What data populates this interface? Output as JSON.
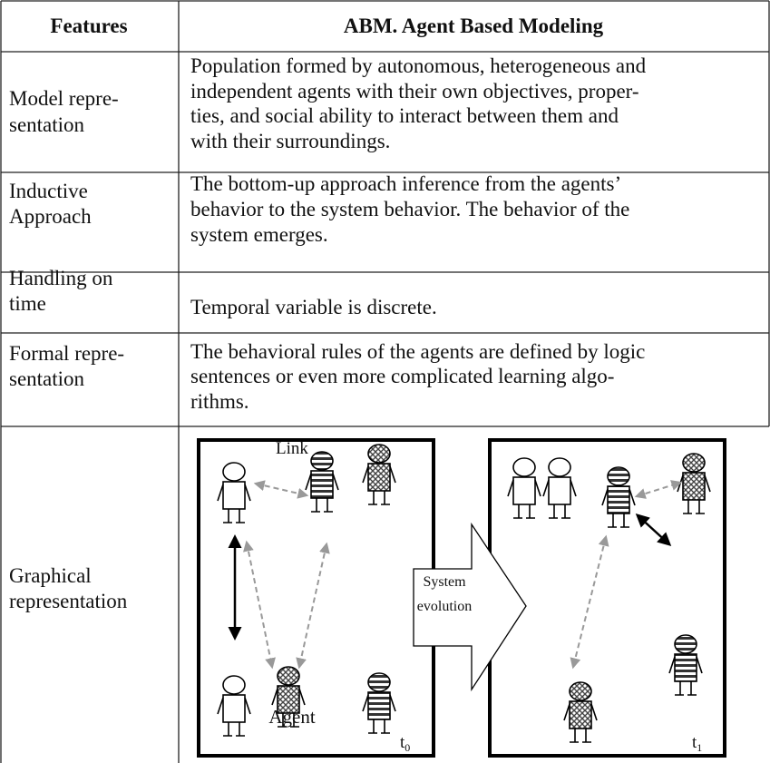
{
  "header": {
    "features": "Features",
    "model": "ABM. Agent Based Modeling"
  },
  "rows": [
    {
      "feature": [
        "Model repre-",
        "sentation"
      ],
      "description": [
        "Population formed by autonomous, heterogeneous and",
        "independent agents with their own objectives, proper-",
        "ties, and social ability to interact between them and",
        "with their surroundings."
      ]
    },
    {
      "feature": [
        "Inductive",
        "Approach"
      ],
      "description": [
        "The bottom-up approach inference from the agents’",
        "behavior to the system behavior. The behavior of the",
        "system emerges."
      ]
    },
    {
      "feature": [
        "Handling on",
        "time"
      ],
      "description": [
        "Temporal variable is discrete."
      ]
    },
    {
      "feature": [
        "Formal repre-",
        "sentation"
      ],
      "description": [
        "The behavioral rules of the agents are defined by logic",
        "sentences or even more complicated learning algo-",
        "rithms."
      ]
    },
    {
      "feature": [
        "Graphical",
        "representation"
      ]
    }
  ],
  "diagram": {
    "link": "Link",
    "agent": "Agent",
    "arrow": [
      "System",
      "evolution"
    ],
    "times": [
      {
        "base": "t",
        "sub": "0"
      },
      {
        "base": "t",
        "sub": "1"
      }
    ]
  }
}
